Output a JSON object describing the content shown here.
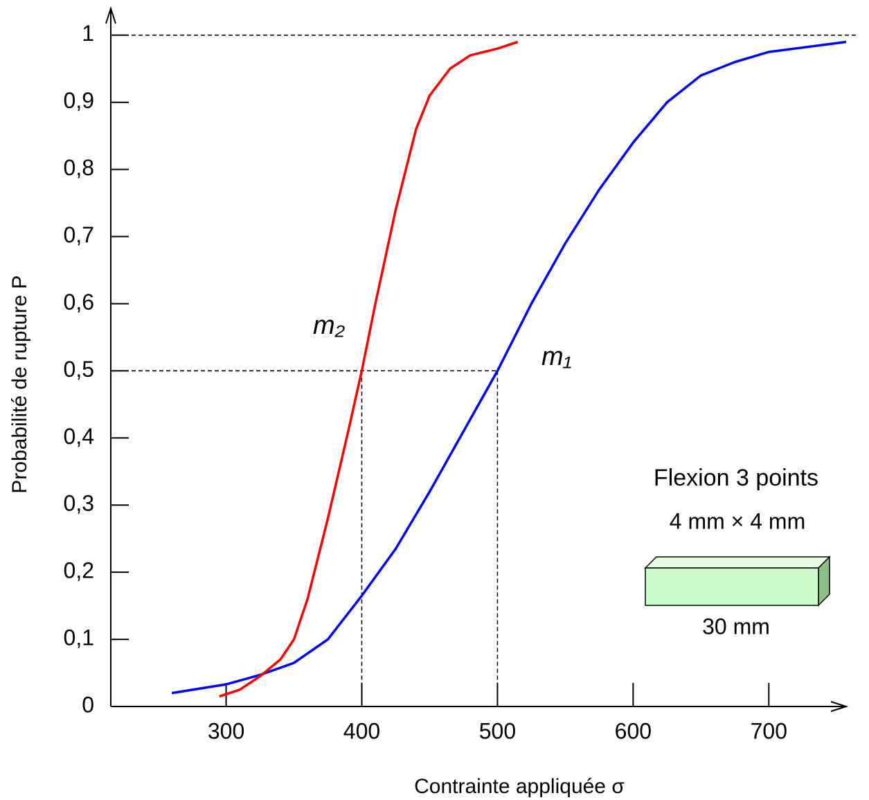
{
  "chart_data": {
    "type": "line",
    "x_label": "Contrainte appliquée σ",
    "y_label": "Probabilité de rupture P",
    "series": [
      {
        "name": "m₁",
        "color": "#0000ff",
        "label_color": "#0000ff",
        "x": [
          260,
          300,
          325,
          350,
          375,
          400,
          425,
          450,
          475,
          500,
          525,
          550,
          575,
          600,
          625,
          650,
          675,
          700,
          757
        ],
        "values": [
          0.02,
          0.033,
          0.047,
          0.065,
          0.1,
          0.165,
          0.235,
          0.32,
          0.41,
          0.5,
          0.6,
          0.69,
          0.77,
          0.84,
          0.9,
          0.94,
          0.96,
          0.975,
          0.99
        ]
      },
      {
        "name": "m₂",
        "color": "#ff0000",
        "label_color": "#e8772a",
        "x": [
          295,
          310,
          325,
          340,
          350,
          360,
          375,
          390,
          400,
          410,
          425,
          440,
          450,
          465,
          480,
          500,
          515
        ],
        "values": [
          0.015,
          0.025,
          0.045,
          0.07,
          0.1,
          0.16,
          0.28,
          0.41,
          0.5,
          0.6,
          0.74,
          0.86,
          0.91,
          0.95,
          0.97,
          0.98,
          0.99
        ]
      }
    ],
    "xlim": [
      215,
      757
    ],
    "ylim": [
      0,
      1.04
    ],
    "xticks": [
      300,
      400,
      500,
      600,
      700
    ],
    "yticks": [
      0,
      {
        "value": 0.1,
        "label": "0,1"
      },
      {
        "value": 0.2,
        "label": "0,2"
      },
      {
        "value": 0.3,
        "label": "0,3"
      },
      {
        "value": 0.4,
        "label": "0,4"
      },
      {
        "value": 0.5,
        "label": "0,5"
      },
      {
        "value": 0.6,
        "label": "0,6"
      },
      {
        "value": 0.7,
        "label": "0,7"
      },
      {
        "value": 0.8,
        "label": "0,8"
      },
      {
        "value": 0.9,
        "label": "0,9"
      },
      1
    ],
    "reference_y": 1,
    "median_points": [
      {
        "x": 400,
        "y": 0.5
      },
      {
        "x": 500,
        "y": 0.5
      }
    ],
    "annotations": [
      "Flexion 3 points",
      "4 mm × 4 mm",
      "30 mm"
    ]
  }
}
